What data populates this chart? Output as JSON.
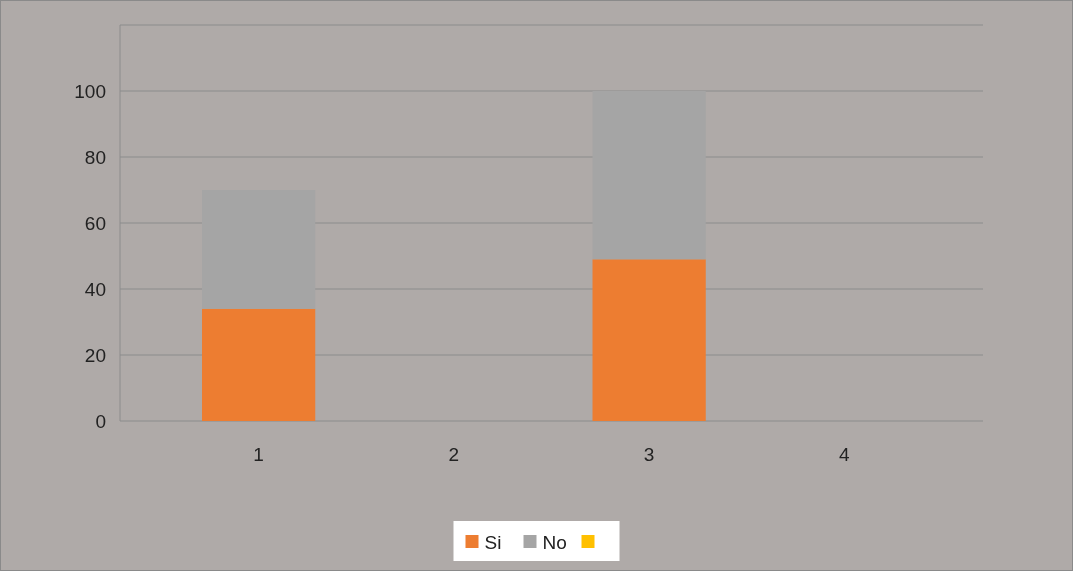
{
  "chart_data": {
    "type": "bar",
    "stacked": true,
    "categories": [
      "1",
      "2",
      "3",
      "4"
    ],
    "series": [
      {
        "name": "Si",
        "color": "#ed7d31",
        "values": [
          34,
          null,
          49,
          null
        ]
      },
      {
        "name": "No",
        "color": "#a5a5a5",
        "values": [
          36,
          null,
          51,
          null
        ]
      },
      {
        "color": "#ffc000",
        "values": [
          null,
          null,
          null,
          null
        ]
      }
    ],
    "ylim": [
      0,
      120
    ],
    "yticks": [
      0,
      20,
      40,
      60,
      80,
      100,
      {
        "value": 120,
        "label": null
      }
    ],
    "grid": "y",
    "legend": "bottom"
  }
}
